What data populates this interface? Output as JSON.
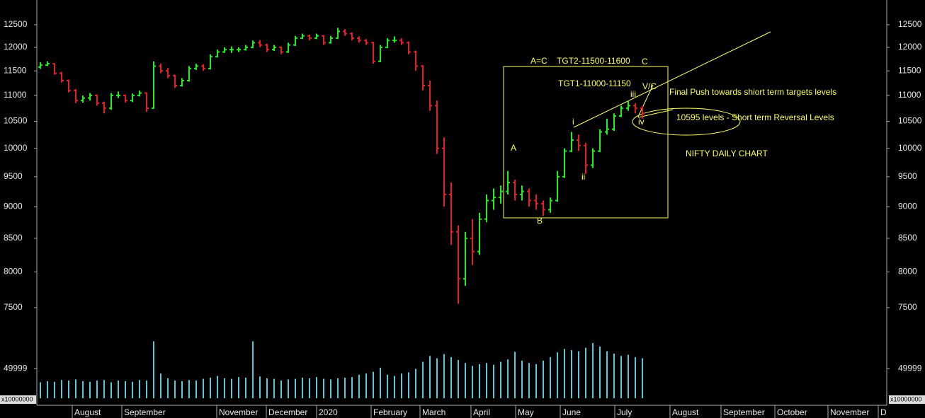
{
  "chart_data": {
    "type": "ohlc",
    "log_scale": true,
    "up_color": "#22ee22",
    "down_color": "#e0202a",
    "volume_color": "#5ec6d6",
    "ylim": [
      7000,
      13070
    ],
    "yticks": [
      7500,
      8000,
      8500,
      9000,
      9500,
      10000,
      10500,
      11000,
      11500,
      12000,
      12500
    ],
    "volume_ylim": [
      0,
      100000
    ],
    "volume_yticks": [
      49999
    ],
    "volume_unit": "x10000000",
    "xlim": [
      0,
      120
    ],
    "xticks": [
      {
        "value": 5,
        "label": "August"
      },
      {
        "value": 12,
        "label": "September"
      },
      {
        "value": 25.4,
        "label": "November"
      },
      {
        "value": 32.4,
        "label": "December"
      },
      {
        "value": 39.5,
        "label": "2020"
      },
      {
        "value": 47.2,
        "label": "February"
      },
      {
        "value": 54.1,
        "label": "March"
      },
      {
        "value": 61.3,
        "label": "April"
      },
      {
        "value": 67.6,
        "label": "May"
      },
      {
        "value": 73.9,
        "label": "June"
      },
      {
        "value": 81.6,
        "label": "July"
      },
      {
        "value": 89.4,
        "label": "August"
      },
      {
        "value": 96.6,
        "label": "September"
      },
      {
        "value": 104.2,
        "label": "October"
      },
      {
        "value": 111.7,
        "label": "November"
      },
      {
        "value": 118.8,
        "label": "D"
      }
    ],
    "ohlc": [
      [
        11580,
        11680,
        11540,
        11620
      ],
      [
        11620,
        11700,
        11600,
        11650
      ],
      [
        11650,
        11660,
        11420,
        11450
      ],
      [
        11450,
        11480,
        11260,
        11300
      ],
      [
        11300,
        11320,
        11060,
        11100
      ],
      [
        11100,
        11130,
        10850,
        10900
      ],
      [
        10900,
        11000,
        10860,
        10950
      ],
      [
        10950,
        11050,
        10900,
        11000
      ],
      [
        11000,
        11020,
        10800,
        10850
      ],
      [
        10850,
        10880,
        10650,
        10750
      ],
      [
        10750,
        11050,
        10720,
        11000
      ],
      [
        11000,
        11080,
        10950,
        11000
      ],
      [
        11000,
        11020,
        10860,
        10900
      ],
      [
        10900,
        11040,
        10870,
        11000
      ],
      [
        11000,
        11100,
        10980,
        11050
      ],
      [
        11050,
        11060,
        10680,
        10750
      ],
      [
        10750,
        11700,
        10740,
        11600
      ],
      [
        11600,
        11650,
        11450,
        11500
      ],
      [
        11500,
        11560,
        11350,
        11400
      ],
      [
        11400,
        11420,
        11150,
        11200
      ],
      [
        11200,
        11350,
        11180,
        11300
      ],
      [
        11300,
        11600,
        11280,
        11550
      ],
      [
        11550,
        11650,
        11520,
        11600
      ],
      [
        11600,
        11640,
        11500,
        11550
      ],
      [
        11550,
        11850,
        11530,
        11800
      ],
      [
        11800,
        11950,
        11780,
        11900
      ],
      [
        11900,
        12000,
        11880,
        11950
      ],
      [
        11950,
        12020,
        11880,
        11950
      ],
      [
        11950,
        12000,
        11900,
        11950
      ],
      [
        11950,
        12050,
        11930,
        12000
      ],
      [
        12000,
        12150,
        11980,
        12100
      ],
      [
        12100,
        12160,
        12000,
        12050
      ],
      [
        12050,
        12080,
        11900,
        11950
      ],
      [
        11950,
        12050,
        11920,
        12000
      ],
      [
        12000,
        12020,
        11850,
        11900
      ],
      [
        11900,
        12100,
        11880,
        12050
      ],
      [
        12050,
        12250,
        12030,
        12200
      ],
      [
        12200,
        12300,
        12180,
        12250
      ],
      [
        12250,
        12280,
        12150,
        12200
      ],
      [
        12200,
        12300,
        12180,
        12250
      ],
      [
        12250,
        12270,
        12050,
        12100
      ],
      [
        12100,
        12250,
        12080,
        12200
      ],
      [
        12200,
        12430,
        12180,
        12350
      ],
      [
        12350,
        12400,
        12250,
        12300
      ],
      [
        12300,
        12330,
        12150,
        12200
      ],
      [
        12200,
        12240,
        12100,
        12150
      ],
      [
        12150,
        12180,
        12050,
        12100
      ],
      [
        12100,
        12120,
        11650,
        11700
      ],
      [
        11700,
        12050,
        11680,
        12000
      ],
      [
        12000,
        12200,
        11980,
        12150
      ],
      [
        12150,
        12240,
        12100,
        12150
      ],
      [
        12150,
        12200,
        12050,
        12100
      ],
      [
        12100,
        12130,
        11850,
        11900
      ],
      [
        11900,
        11930,
        11500,
        11600
      ],
      [
        11600,
        11620,
        11100,
        11200
      ],
      [
        11200,
        11300,
        10700,
        10800
      ],
      [
        10800,
        10900,
        9900,
        10000
      ],
      [
        10000,
        10200,
        9000,
        9200
      ],
      [
        9200,
        9400,
        8400,
        8600
      ],
      [
        8600,
        8700,
        7550,
        7900
      ],
      [
        7900,
        8600,
        7800,
        8500
      ],
      [
        8500,
        8800,
        8100,
        8300
      ],
      [
        8300,
        8900,
        8250,
        8800
      ],
      [
        8800,
        9200,
        8750,
        9100
      ],
      [
        9100,
        9300,
        8950,
        9150
      ],
      [
        9150,
        9350,
        9050,
        9250
      ],
      [
        9250,
        9600,
        9200,
        9400
      ],
      [
        9400,
        9450,
        9100,
        9200
      ],
      [
        9200,
        9350,
        9100,
        9250
      ],
      [
        9250,
        9300,
        9000,
        9100
      ],
      [
        9100,
        9200,
        8950,
        9050
      ],
      [
        9050,
        9100,
        8850,
        8950
      ],
      [
        8950,
        9150,
        8900,
        9100
      ],
      [
        9100,
        9600,
        9080,
        9500
      ],
      [
        9500,
        10000,
        9480,
        9950
      ],
      [
        9950,
        10300,
        9930,
        10150
      ],
      [
        10150,
        10250,
        9950,
        10050
      ],
      [
        10050,
        10100,
        9550,
        9700
      ],
      [
        9700,
        10000,
        9650,
        9950
      ],
      [
        9950,
        10350,
        9930,
        10300
      ],
      [
        10300,
        10550,
        10250,
        10350
      ],
      [
        10350,
        10650,
        10320,
        10600
      ],
      [
        10600,
        10800,
        10580,
        10750
      ],
      [
        10750,
        10900,
        10700,
        10800
      ],
      [
        10800,
        10850,
        10650,
        10750
      ],
      [
        10750,
        10800,
        10550,
        10650
      ]
    ],
    "volume": [
      27000,
      29000,
      28000,
      31000,
      30000,
      32000,
      29000,
      28000,
      30000,
      31000,
      27000,
      30000,
      29000,
      28000,
      31000,
      30000,
      97000,
      42000,
      34000,
      30000,
      29000,
      31000,
      30000,
      33000,
      35000,
      38000,
      34000,
      33000,
      36000,
      35000,
      97000,
      37000,
      34000,
      33000,
      30000,
      32000,
      33000,
      35000,
      34000,
      36000,
      33000,
      32000,
      34000,
      35000,
      36000,
      40000,
      42000,
      45000,
      52000,
      40000,
      38000,
      42000,
      44000,
      50000,
      62000,
      72000,
      68000,
      75000,
      70000,
      65000,
      60000,
      55000,
      58000,
      60000,
      57000,
      62000,
      66000,
      79000,
      64000,
      60000,
      58000,
      64000,
      70000,
      78000,
      84000,
      82000,
      80000,
      86000,
      94000,
      88000,
      80000,
      76000,
      72000,
      74000,
      70000,
      68000
    ],
    "annotations": [
      "A=C",
      "TGT2-11500-11600",
      "C",
      "TGT1-11000-11150",
      "iii",
      "V/C",
      "Final Push towards  shiort term targets levels",
      "10595 levels - Short term Reversal Levels",
      "iv",
      "i",
      "A",
      "ii",
      "B",
      "NIFTY DAILY CHART"
    ]
  }
}
